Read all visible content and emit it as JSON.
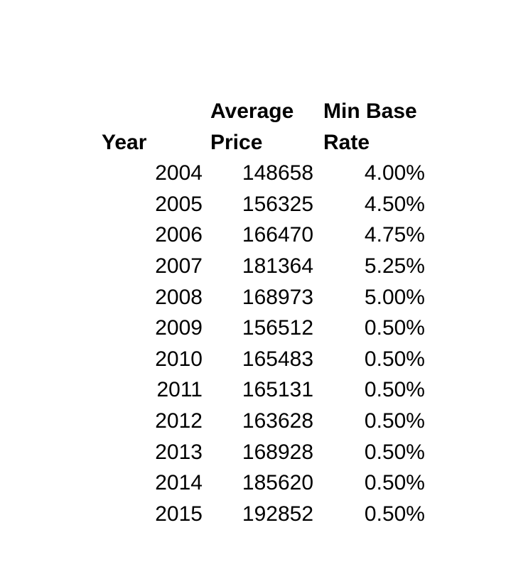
{
  "page": {
    "background_color": "#ffffff",
    "text_color": "#000000"
  },
  "table": {
    "columns": [
      {
        "id": "year",
        "header_lines": [
          "Year"
        ]
      },
      {
        "id": "average_price",
        "header_lines": [
          "Average",
          "Price"
        ]
      },
      {
        "id": "min_base_rate",
        "header_lines": [
          "Min Base",
          "Rate"
        ]
      }
    ],
    "rows": [
      {
        "year": "2004",
        "average_price": "148658",
        "min_base_rate": "4.00%"
      },
      {
        "year": "2005",
        "average_price": "156325",
        "min_base_rate": "4.50%"
      },
      {
        "year": "2006",
        "average_price": "166470",
        "min_base_rate": "4.75%"
      },
      {
        "year": "2007",
        "average_price": "181364",
        "min_base_rate": "5.25%"
      },
      {
        "year": "2008",
        "average_price": "168973",
        "min_base_rate": "5.00%"
      },
      {
        "year": "2009",
        "average_price": "156512",
        "min_base_rate": "0.50%"
      },
      {
        "year": "2010",
        "average_price": "165483",
        "min_base_rate": "0.50%"
      },
      {
        "year": "2011",
        "average_price": "165131",
        "min_base_rate": "0.50%"
      },
      {
        "year": "2012",
        "average_price": "163628",
        "min_base_rate": "0.50%"
      },
      {
        "year": "2013",
        "average_price": "168928",
        "min_base_rate": "0.50%"
      },
      {
        "year": "2014",
        "average_price": "185620",
        "min_base_rate": "0.50%"
      },
      {
        "year": "2015",
        "average_price": "192852",
        "min_base_rate": "0.50%"
      }
    ]
  },
  "chart_data": {
    "type": "table",
    "title": "",
    "columns": [
      "Year",
      "Average Price",
      "Min Base Rate"
    ],
    "categories": [
      "2004",
      "2005",
      "2006",
      "2007",
      "2008",
      "2009",
      "2010",
      "2011",
      "2012",
      "2013",
      "2014",
      "2015"
    ],
    "series": [
      {
        "name": "Average Price",
        "values": [
          148658,
          156325,
          166470,
          181364,
          168973,
          156512,
          165483,
          165131,
          163628,
          168928,
          185620,
          192852
        ]
      },
      {
        "name": "Min Base Rate (%)",
        "values": [
          4.0,
          4.5,
          4.75,
          5.25,
          5.0,
          0.5,
          0.5,
          0.5,
          0.5,
          0.5,
          0.5,
          0.5
        ]
      }
    ],
    "layout": {
      "grid": false,
      "legend_position": "none",
      "header_rows": 2
    }
  }
}
